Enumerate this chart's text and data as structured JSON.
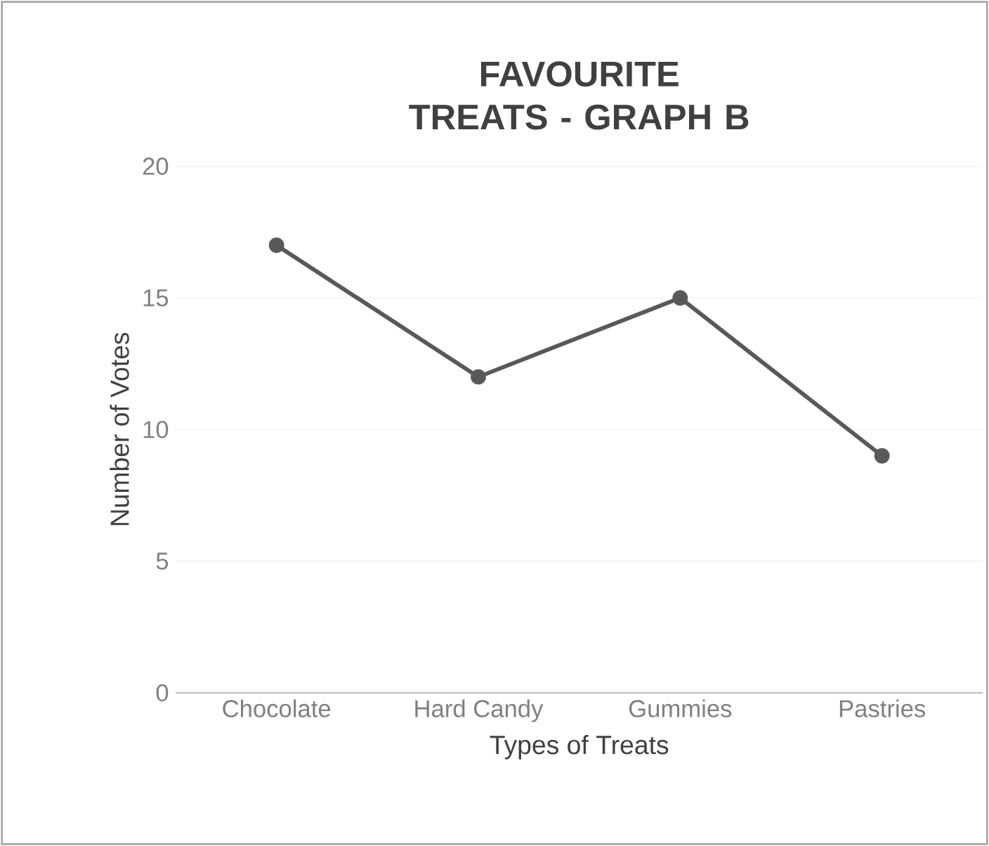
{
  "chart_data": {
    "type": "line",
    "title": "FAVOURITE TREATS - GRAPH B",
    "xlabel": "Types of Treats",
    "ylabel": "Number of Votes",
    "categories": [
      "Chocolate",
      "Hard Candy",
      "Gummies",
      "Pastries"
    ],
    "values": [
      17,
      12,
      15,
      9
    ],
    "color": "#595959",
    "marker": "circle",
    "ylim": [
      0,
      20
    ],
    "yticks": [
      0,
      5,
      10,
      15,
      20
    ],
    "grid": "y"
  }
}
